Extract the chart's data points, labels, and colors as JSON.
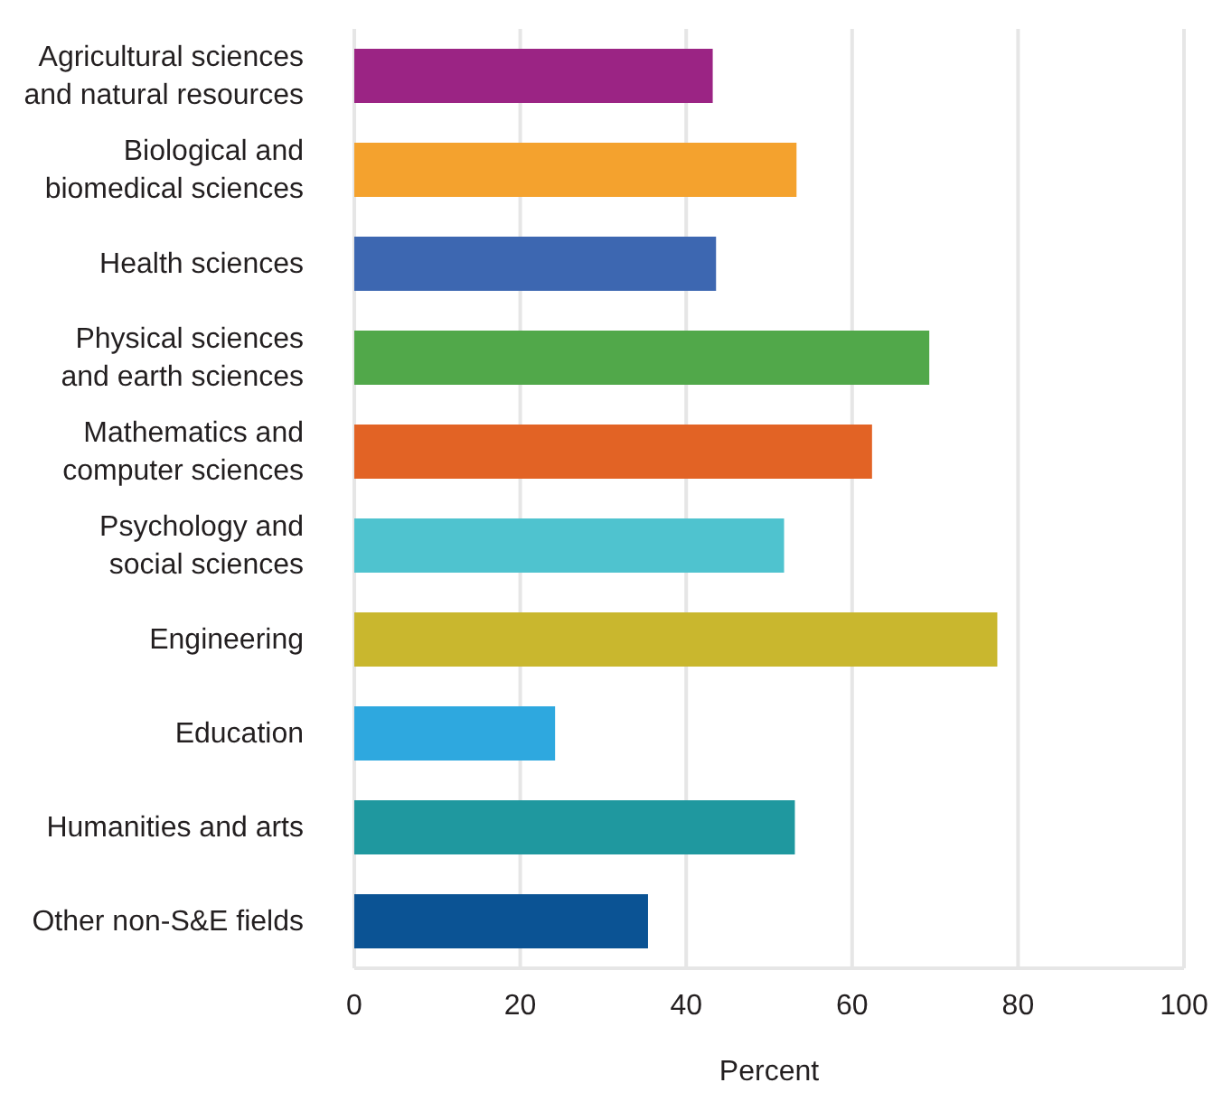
{
  "chart_data": {
    "type": "bar",
    "orientation": "horizontal",
    "xlabel": "Percent",
    "categories": [
      "Agricultural sciences and natural resources",
      "Biological and biomedical sciences",
      "Health sciences",
      "Physical sciences and earth sciences",
      "Mathematics and computer sciences",
      "Psychology and social sciences",
      "Engineering",
      "Education",
      "Humanities and arts",
      "Other non-S&E fields"
    ],
    "values": [
      43.2,
      53.3,
      43.6,
      69.3,
      62.4,
      51.8,
      77.5,
      24.2,
      53.1,
      35.4
    ],
    "colors": [
      "#9b2484",
      "#f4a22e",
      "#3d67b1",
      "#51a84a",
      "#e26325",
      "#4fc3cf",
      "#c9b72e",
      "#2ea8df",
      "#1f989f",
      "#0b5394"
    ],
    "xlim": [
      0,
      100
    ],
    "xticks": [
      0,
      20,
      40,
      60,
      80,
      100
    ],
    "grid": "x"
  }
}
